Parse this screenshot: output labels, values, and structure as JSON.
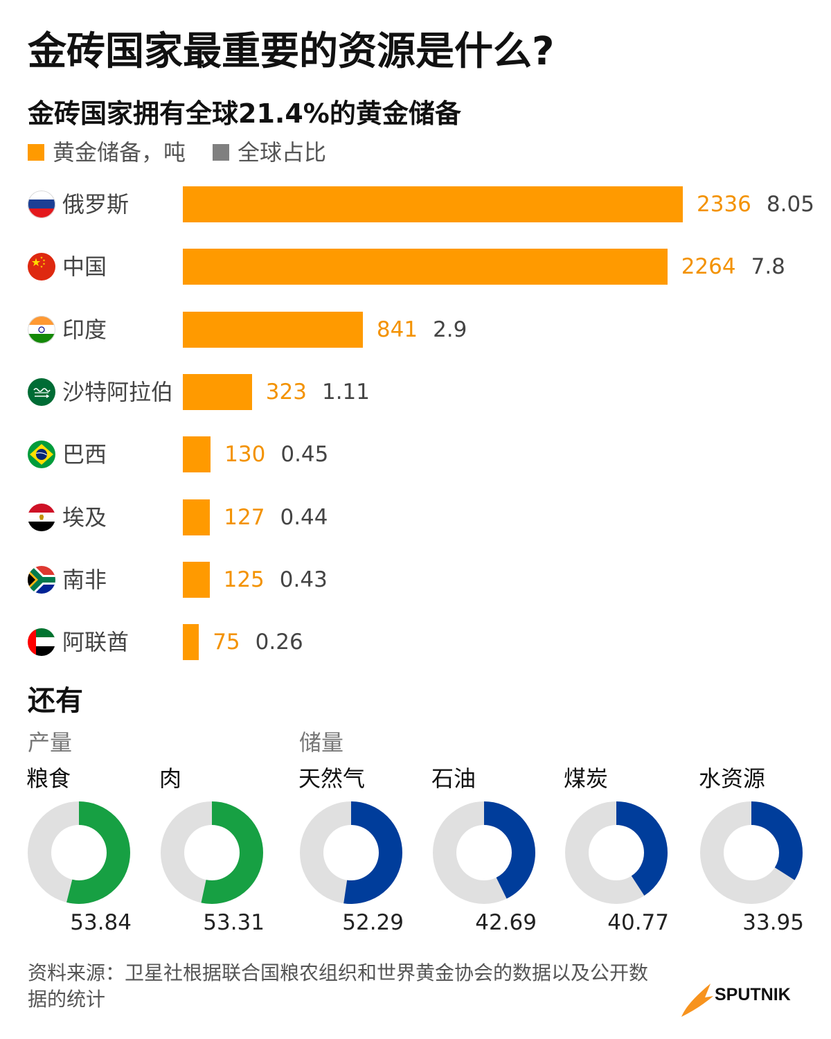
{
  "header": {
    "title": "金砖国家最重要的资源是什么?"
  },
  "colors": {
    "gold_bar": "#ff9a00",
    "gold_label": "#f39200",
    "share_swatch": "#808080",
    "share_label": "#444444",
    "ring_track": "#e0e0e0"
  },
  "flags": [
    "russia-flag-icon",
    "china-flag-icon",
    "india-flag-icon",
    "saudi-arabia-flag-icon",
    "brazil-flag-icon",
    "egypt-flag-icon",
    "south-africa-flag-icon",
    "uae-flag-icon"
  ],
  "chart_data": [
    {
      "type": "bar",
      "title": "金砖国家拥有全球21.4%的黄金储备",
      "categories": [
        "俄罗斯",
        "中国",
        "印度",
        "沙特阿拉伯",
        "巴西",
        "埃及",
        "南非",
        "阿联酋"
      ],
      "series": [
        {
          "name": "黄金储备，吨",
          "values": [
            2336,
            2264,
            841,
            323,
            130,
            127,
            125,
            75
          ]
        },
        {
          "name": "全球占比",
          "values": [
            8.05,
            7.8,
            2.9,
            1.11,
            0.45,
            0.44,
            0.43,
            0.26
          ]
        }
      ]
    },
    {
      "type": "pie",
      "title": "还有",
      "groups": [
        {
          "name": "产量",
          "color": "#17a043",
          "items": [
            {
              "label": "粮食",
              "value": 53.84
            },
            {
              "label": "肉",
              "value": 53.31
            }
          ]
        },
        {
          "name": "储量",
          "color": "#003d9b",
          "items": [
            {
              "label": "天然气",
              "value": 52.29
            },
            {
              "label": "石油",
              "value": 42.69
            },
            {
              "label": "煤炭",
              "value": 40.77
            },
            {
              "label": "水资源",
              "value": 33.95
            }
          ]
        }
      ]
    }
  ],
  "footer": {
    "source": "资料来源：卫星社根据联合国粮农组织和世界黄金协会的数据以及公开数据的统计",
    "logo_text": "SPUTNIK"
  }
}
